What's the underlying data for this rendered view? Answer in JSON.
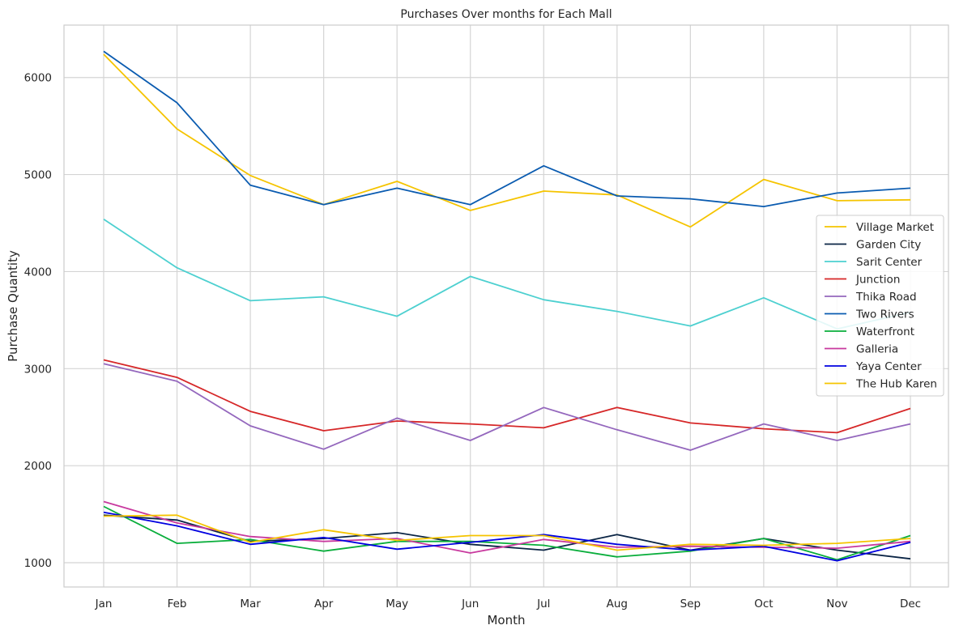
{
  "chart_data": {
    "type": "line",
    "title": "Purchases Over months for Each Mall",
    "xlabel": "Month",
    "ylabel": "Purchase Quantity",
    "categories": [
      "Jan",
      "Feb",
      "Mar",
      "Apr",
      "May",
      "Jun",
      "Jul",
      "Aug",
      "Sep",
      "Oct",
      "Nov",
      "Dec"
    ],
    "yticks": [
      1000,
      2000,
      3000,
      4000,
      5000,
      6000
    ],
    "ylim": [
      750,
      6540
    ],
    "grid": true,
    "legend_position": "right",
    "series": [
      {
        "name": "Village Market",
        "color": "#f5c400",
        "values": [
          6240,
          5470,
          4990,
          4690,
          4930,
          4630,
          4830,
          4790,
          4460,
          4950,
          4730,
          4740
        ]
      },
      {
        "name": "Garden City",
        "color": "#0b2545",
        "values": [
          1490,
          1440,
          1220,
          1250,
          1310,
          1190,
          1130,
          1290,
          1130,
          1250,
          1130,
          1040
        ]
      },
      {
        "name": "Sarit Center",
        "color": "#4dd0d0",
        "values": [
          4540,
          4040,
          3700,
          3740,
          3540,
          3950,
          3710,
          3590,
          3440,
          3730,
          3410,
          3580
        ]
      },
      {
        "name": "Junction",
        "color": "#d62728",
        "values": [
          3090,
          2910,
          2560,
          2360,
          2460,
          2430,
          2390,
          2600,
          2440,
          2380,
          2340,
          2590
        ]
      },
      {
        "name": "Thika Road",
        "color": "#9467bd",
        "values": [
          3050,
          2870,
          2410,
          2170,
          2490,
          2260,
          2600,
          2370,
          2160,
          2430,
          2260,
          2430
        ]
      },
      {
        "name": "Two Rivers",
        "color": "#0a5bb0",
        "values": [
          6270,
          5740,
          4890,
          4690,
          4860,
          4690,
          5090,
          4780,
          4750,
          4670,
          4810,
          4860
        ]
      },
      {
        "name": "Waterfront",
        "color": "#0aae3c",
        "values": [
          1580,
          1200,
          1240,
          1120,
          1220,
          1220,
          1180,
          1060,
          1120,
          1250,
          1030,
          1280
        ]
      },
      {
        "name": "Galleria",
        "color": "#c8399e",
        "values": [
          1630,
          1410,
          1270,
          1220,
          1250,
          1100,
          1240,
          1160,
          1170,
          1160,
          1150,
          1220
        ]
      },
      {
        "name": "Yaya Center",
        "color": "#0000e0",
        "values": [
          1520,
          1380,
          1190,
          1260,
          1140,
          1210,
          1290,
          1190,
          1130,
          1170,
          1020,
          1210
        ]
      },
      {
        "name": "The Hub Karen",
        "color": "#f5c400",
        "values": [
          1480,
          1490,
          1210,
          1340,
          1230,
          1280,
          1280,
          1130,
          1190,
          1180,
          1200,
          1250
        ]
      }
    ]
  }
}
